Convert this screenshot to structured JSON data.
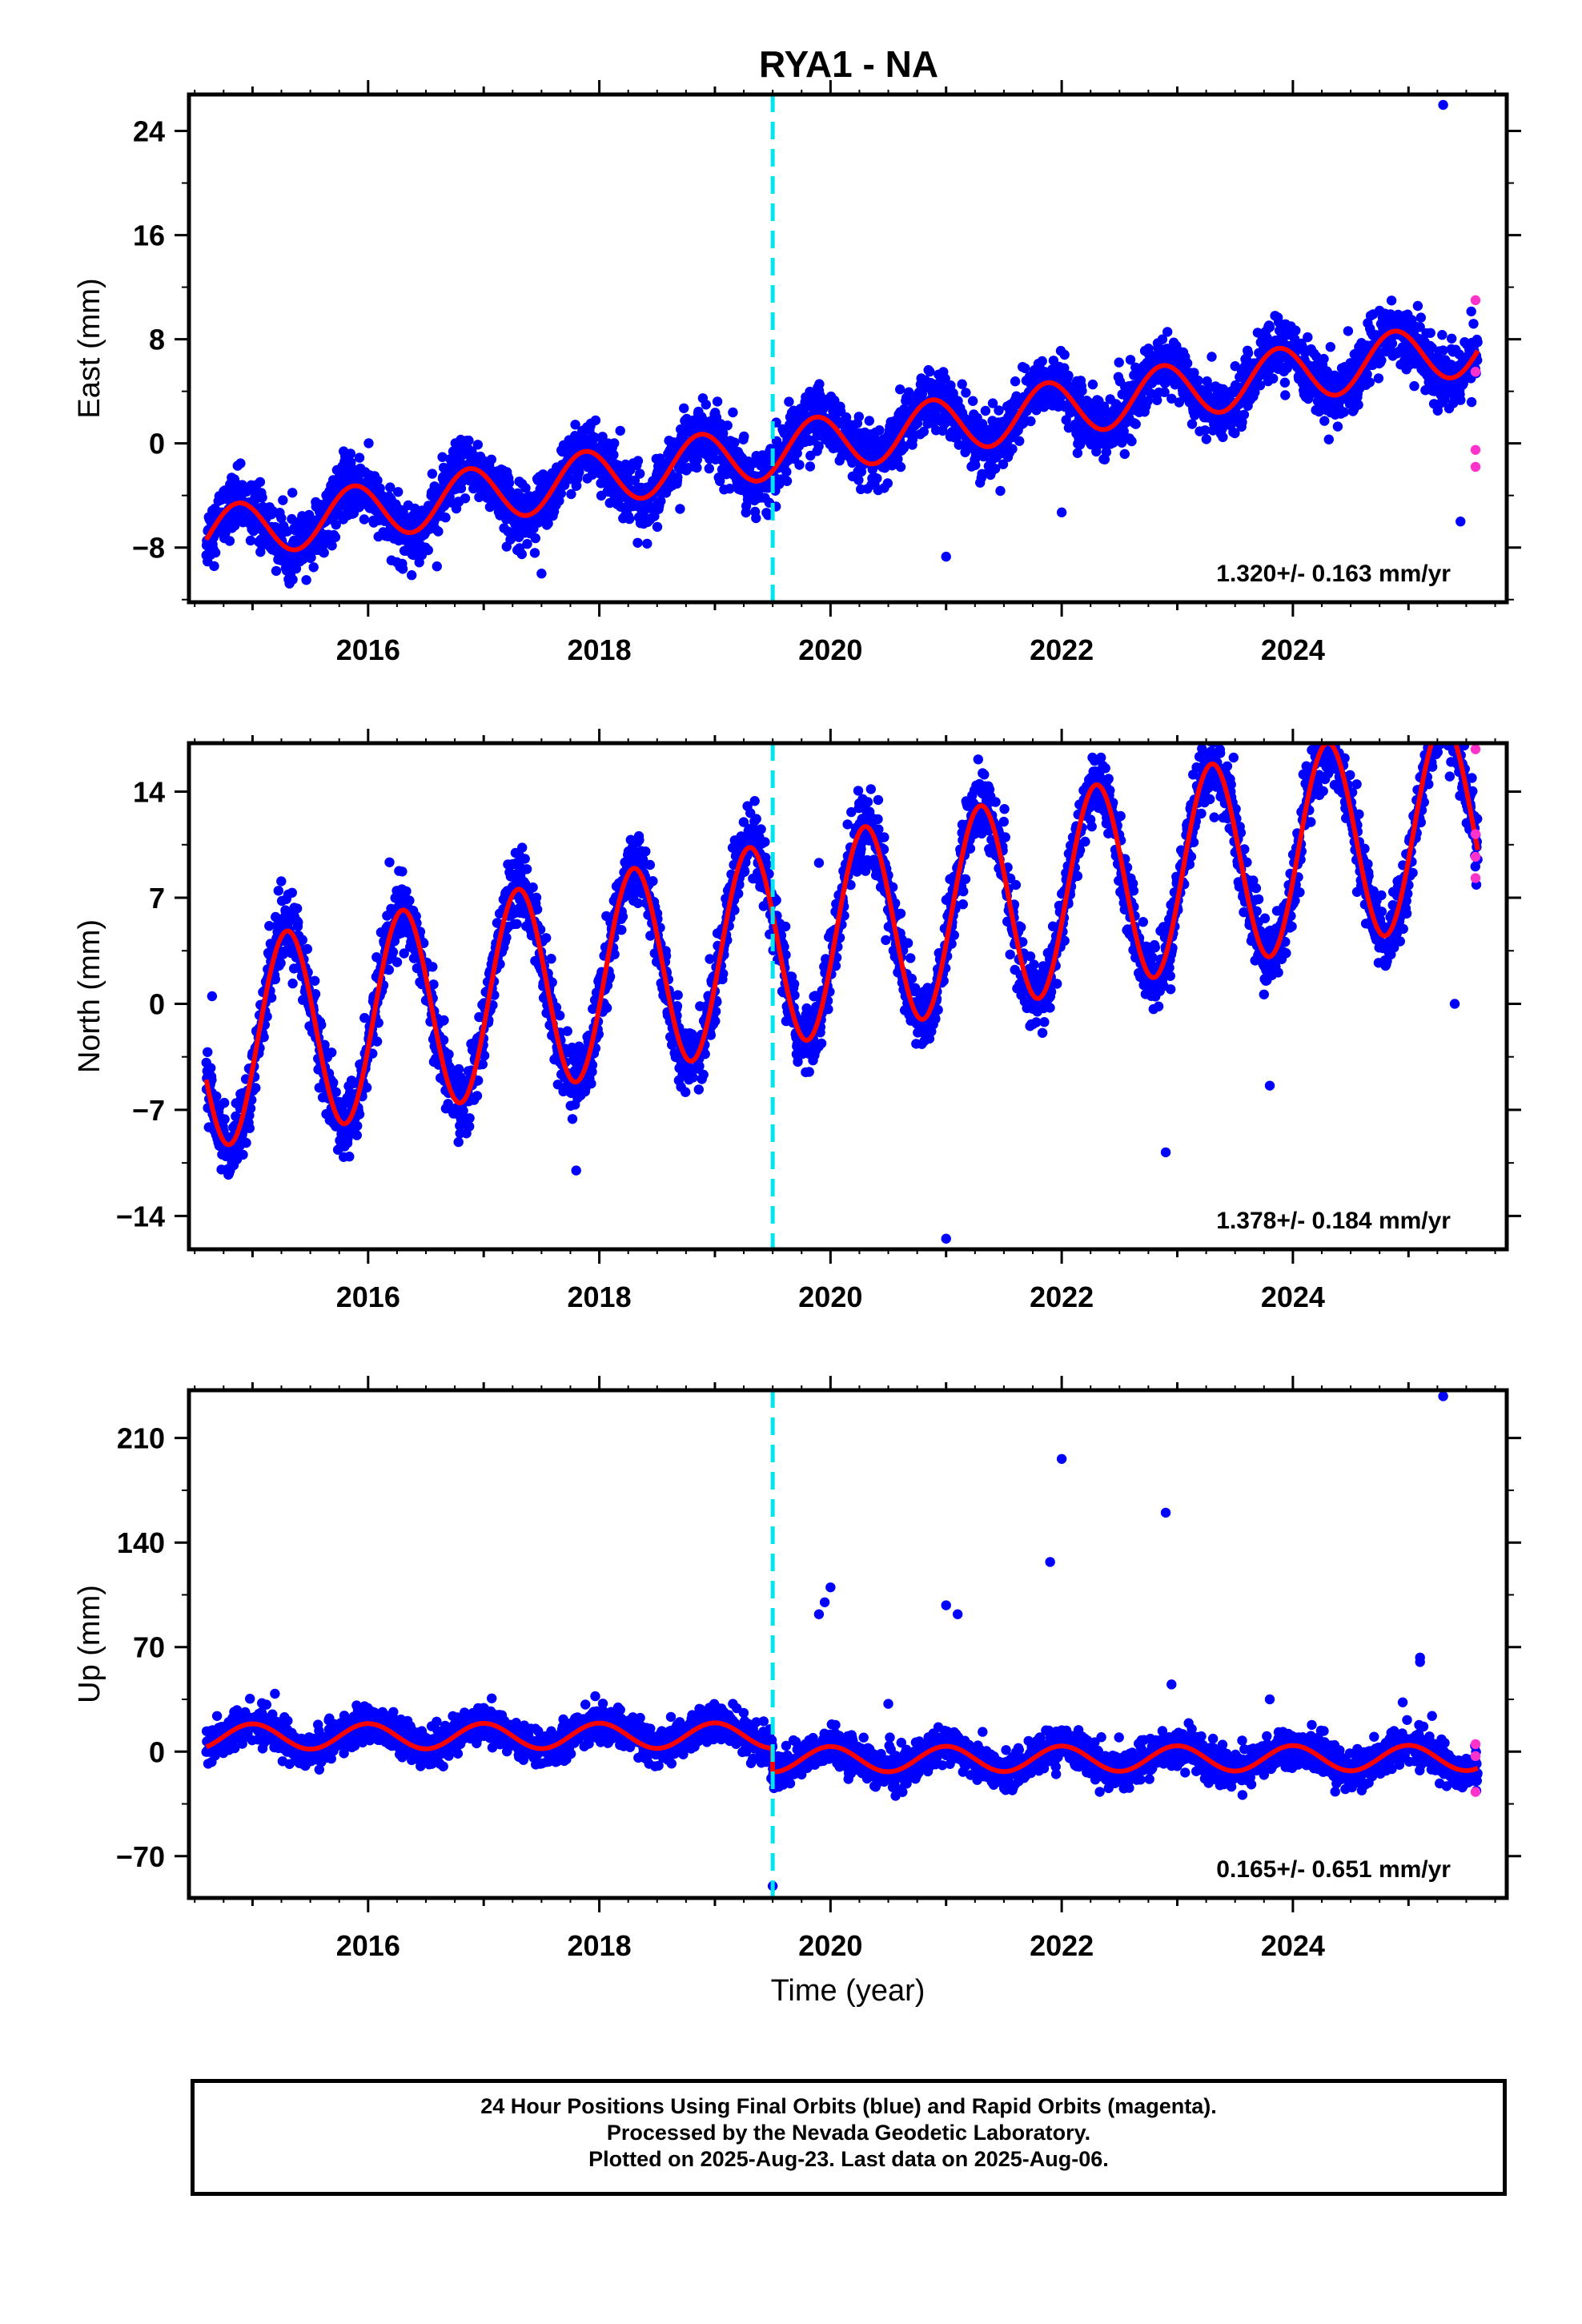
{
  "title": "RYA1 - NA",
  "colors": {
    "final": "#0000ff",
    "rapid": "#ff33cc",
    "model": "#ff0000",
    "event": "#00e5ee",
    "axis": "#000000"
  },
  "chart_data": [
    {
      "type": "scatter",
      "component": "east",
      "ylabel": "East (mm)",
      "ylim": [
        -12.2,
        26.8
      ],
      "yticks": [
        -8,
        0,
        8,
        16,
        24
      ],
      "xlim": [
        2014.45,
        2025.85
      ],
      "xticks": [
        2016,
        2018,
        2020,
        2022,
        2024
      ],
      "rate_label": "1.320+/- 0.163 mm/yr",
      "event_line_x": 2019.5,
      "model": {
        "intercept": -7.2,
        "rate": 1.32,
        "jump": 0,
        "amp_cos": -1.5,
        "amp_sin": 1.5,
        "phase_ref": 2014.5,
        "start": 2014.6,
        "end": 2025.6
      },
      "outliers": [
        {
          "x": 2025.3,
          "y": 26.0
        },
        {
          "x": 2025.45,
          "y": -6.0
        },
        {
          "x": 2021.0,
          "y": -8.7
        },
        {
          "x": 2017.5,
          "y": -10.0
        },
        {
          "x": 2022.0,
          "y": -5.3
        }
      ],
      "rapid_points": [
        {
          "x": 2025.58,
          "y": 11.0
        },
        {
          "x": 2025.58,
          "y": 5.5
        },
        {
          "x": 2025.58,
          "y": -0.5
        },
        {
          "x": 2025.58,
          "y": -1.8
        }
      ]
    },
    {
      "type": "scatter",
      "component": "north",
      "ylabel": "North (mm)",
      "ylim": [
        -16.2,
        17.2
      ],
      "yticks": [
        -14,
        -7,
        0,
        7,
        14
      ],
      "xlim": [
        2014.45,
        2025.85
      ],
      "xticks": [
        2016,
        2018,
        2020,
        2022,
        2024
      ],
      "rate_label": "1.378+/- 0.184 mm/yr",
      "event_line_x": 2019.5,
      "model": {
        "intercept": -3.0,
        "rate": 1.378,
        "jump": 0,
        "amp_cos": 2.0,
        "amp_sin": -6.4,
        "phase_ref": 2014.5,
        "start": 2014.6,
        "end": 2025.6
      },
      "outliers": [
        {
          "x": 2021.0,
          "y": -15.5
        },
        {
          "x": 2022.9,
          "y": -9.8
        },
        {
          "x": 2019.9,
          "y": 9.3
        },
        {
          "x": 2023.8,
          "y": -5.4
        },
        {
          "x": 2025.4,
          "y": 0.0
        },
        {
          "x": 2017.8,
          "y": -11.0
        },
        {
          "x": 2014.65,
          "y": 0.5
        }
      ],
      "rapid_points": [
        {
          "x": 2025.58,
          "y": 16.8
        },
        {
          "x": 2025.58,
          "y": 11.2
        },
        {
          "x": 2025.58,
          "y": 9.7
        },
        {
          "x": 2025.58,
          "y": 8.3
        }
      ]
    },
    {
      "type": "scatter",
      "component": "up",
      "ylabel": "Up (mm)",
      "ylim": [
        -98,
        242
      ],
      "yticks": [
        -70,
        0,
        70,
        140,
        210
      ],
      "xlim": [
        2014.45,
        2025.85
      ],
      "xticks": [
        2016,
        2018,
        2020,
        2022,
        2024
      ],
      "xlabel": "Time (year)",
      "rate_label": "0.165+/- 0.651 mm/yr",
      "event_line_x": 2019.5,
      "model": {
        "intercept": 10.0,
        "rate": 0.165,
        "jump": -16.0,
        "amp_cos": -8.5,
        "amp_sin": 0,
        "phase_ref": 2014.5,
        "start": 2014.6,
        "end": 2025.6
      },
      "outliers": [
        {
          "x": 2025.3,
          "y": 238
        },
        {
          "x": 2022.0,
          "y": 196
        },
        {
          "x": 2022.9,
          "y": 160
        },
        {
          "x": 2021.9,
          "y": 127
        },
        {
          "x": 2020.0,
          "y": 110
        },
        {
          "x": 2019.95,
          "y": 100
        },
        {
          "x": 2019.9,
          "y": 92
        },
        {
          "x": 2021.0,
          "y": 98
        },
        {
          "x": 2021.1,
          "y": 92
        },
        {
          "x": 2025.1,
          "y": 63
        },
        {
          "x": 2025.1,
          "y": 60
        },
        {
          "x": 2022.95,
          "y": 45
        },
        {
          "x": 2023.8,
          "y": 35
        },
        {
          "x": 2020.5,
          "y": 32
        },
        {
          "x": 2024.95,
          "y": 33
        },
        {
          "x": 2019.5,
          "y": -90
        }
      ],
      "rapid_points": [
        {
          "x": 2025.58,
          "y": 5
        },
        {
          "x": 2025.58,
          "y": -3
        },
        {
          "x": 2025.58,
          "y": -27
        }
      ]
    }
  ],
  "caption": {
    "line1": "24 Hour Positions Using Final Orbits (blue) and Rapid Orbits (magenta).",
    "line2": "Processed by the Nevada Geodetic Laboratory.",
    "line3": "Plotted on 2025-Aug-23. Last data on 2025-Aug-06."
  }
}
